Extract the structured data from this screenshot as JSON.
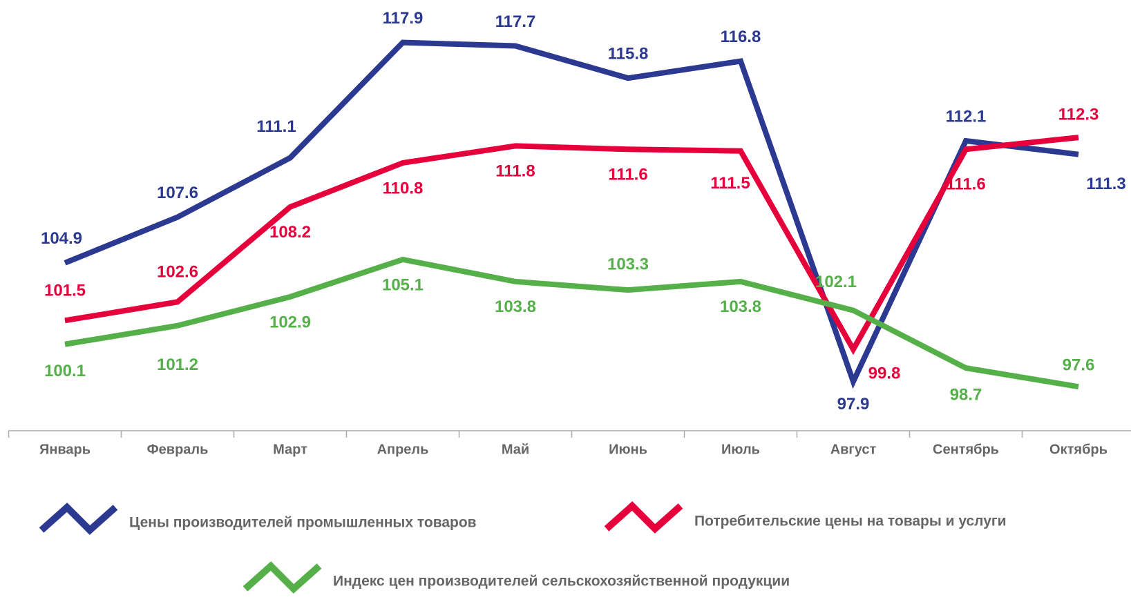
{
  "chart_data": {
    "type": "line",
    "categories": [
      "Январь",
      "Февраль",
      "Март",
      "Апрель",
      "Май",
      "Июнь",
      "Июль",
      "Август",
      "Сентябрь",
      "Октябрь"
    ],
    "ylim": [
      95,
      120
    ],
    "series": [
      {
        "name": "Цены производителей промышленных товаров",
        "color": "#2b3990",
        "values": [
          104.9,
          107.6,
          111.1,
          117.9,
          117.7,
          115.8,
          116.8,
          97.9,
          112.1,
          111.3
        ]
      },
      {
        "name": "Потребительские цены на товары и услуги",
        "color": "#e5003c",
        "values": [
          101.5,
          102.6,
          108.2,
          110.8,
          111.8,
          111.6,
          111.5,
          99.8,
          111.6,
          112.3
        ]
      },
      {
        "name": "Индекс цен производителей сельскохозяйственной продукции",
        "color": "#55b04a",
        "values": [
          100.1,
          101.2,
          102.9,
          105.1,
          103.8,
          103.3,
          103.8,
          102.1,
          98.7,
          97.6
        ]
      }
    ]
  }
}
